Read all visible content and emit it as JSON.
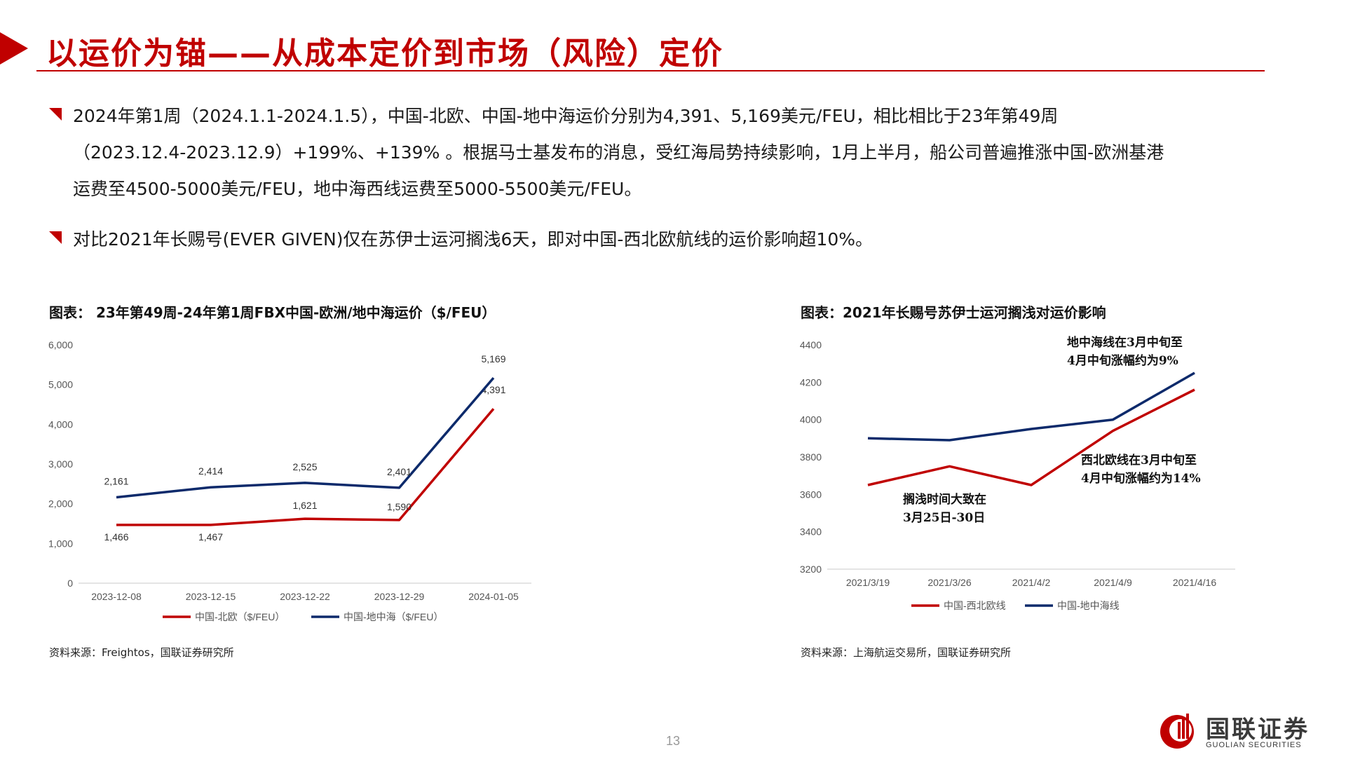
{
  "header": {
    "title": "以运价为锚——从成本定价到市场（风险）定价"
  },
  "bullets": [
    {
      "lines": [
        "2024年第1周（2024.1.1-2024.1.5），中国-北欧、中国-地中海运价分别为4,391、5,169美元/FEU，相比相比于23年第49周",
        "（2023.12.4-2023.12.9）+199%、+139% 。根据马士基发布的消息，受红海局势持续影响，1月上半月，船公司普遍推涨中国-欧洲基港",
        "运费至4500-5000美元/FEU，地中海西线运费至5000-5500美元/FEU。"
      ]
    },
    {
      "lines": [
        "对比2021年长赐号(EVER GIVEN)仅在苏伊士运河搁浅6天，即对中国-西北欧航线的运价影响超10%。"
      ]
    }
  ],
  "figures": {
    "left": {
      "title": "图表： 23年第49周-24年第1周FBX中国-欧洲/地中海运价（$/FEU）",
      "source": "资料来源：Freightos，国联证券研究所"
    },
    "right": {
      "title": "图表：2021年长赐号苏伊士运河搁浅对运价影响",
      "source": "资料来源：上海航运交易所，国联证券研究所"
    }
  },
  "colors": {
    "accent": "#c00000",
    "series_red": "#c00000",
    "series_navy": "#0d2a6b"
  },
  "chart_data": [
    {
      "type": "line",
      "categories": [
        "2023-12-08",
        "2023-12-15",
        "2023-12-22",
        "2023-12-29",
        "2024-01-05"
      ],
      "series": [
        {
          "name": "中国-北欧（$/FEU）",
          "values": [
            1466,
            1467,
            1621,
            1590,
            4391
          ],
          "labels": [
            "1,466",
            "1,467",
            "1,621",
            "1,590",
            "4,391"
          ],
          "color": "#c00000"
        },
        {
          "name": "中国-地中海（$/FEU）",
          "values": [
            2161,
            2414,
            2525,
            2401,
            5169
          ],
          "labels": [
            "2,161",
            "2,414",
            "2,525",
            "2,401",
            "5,169"
          ],
          "color": "#0d2a6b"
        }
      ],
      "yticks": [
        "0",
        "1,000",
        "2,000",
        "3,000",
        "4,000",
        "5,000",
        "6,000"
      ],
      "ylim": [
        0,
        6000
      ],
      "grid": false,
      "legend": "bottom"
    },
    {
      "type": "line",
      "categories": [
        "2021/3/19",
        "2021/3/26",
        "2021/4/2",
        "2021/4/9",
        "2021/4/16"
      ],
      "series": [
        {
          "name": "中国-西北欧线",
          "values": [
            3650,
            3750,
            3650,
            3940,
            4160
          ],
          "color": "#c00000"
        },
        {
          "name": "中国-地中海线",
          "values": [
            3900,
            3890,
            3950,
            4000,
            4250
          ],
          "color": "#0d2a6b"
        }
      ],
      "yticks": [
        "3200",
        "3400",
        "3600",
        "3800",
        "4000",
        "4200",
        "4400"
      ],
      "ylim": [
        3200,
        4400
      ],
      "grid": false,
      "legend": "bottom",
      "annotations": [
        {
          "lines": [
            "地中海线在3月中旬至",
            "4月中旬涨幅约为9%"
          ]
        },
        {
          "lines": [
            "西北欧线在3月中旬至",
            "4月中旬涨幅约为14%"
          ]
        },
        {
          "lines": [
            "搁浅时间大致在",
            "3月25日-30日"
          ]
        }
      ]
    }
  ],
  "footer": {
    "page_number": "13",
    "logo_cn": "国联证券",
    "logo_en": "GUOLIAN SECURITIES"
  }
}
